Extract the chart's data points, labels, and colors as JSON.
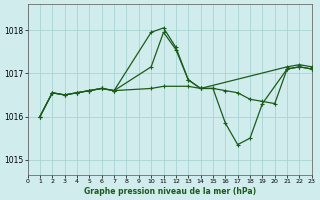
{
  "background_color": "#d0ecec",
  "grid_color": "#a8d4d4",
  "line_color": "#1a5c1a",
  "xlabel": "Graphe pression niveau de la mer (hPa)",
  "xlim": [
    0,
    23
  ],
  "ylim": [
    1014.65,
    1018.6
  ],
  "yticks": [
    1015,
    1016,
    1017,
    1018
  ],
  "xticks": [
    0,
    1,
    2,
    3,
    4,
    5,
    6,
    7,
    8,
    9,
    10,
    11,
    12,
    13,
    14,
    15,
    16,
    17,
    18,
    19,
    20,
    21,
    22,
    23
  ],
  "s1_x": [
    1,
    2,
    3,
    4,
    5,
    6,
    7,
    10,
    11,
    12,
    13,
    14,
    21,
    22,
    23
  ],
  "s1_y": [
    1016.0,
    1016.55,
    1016.5,
    1016.55,
    1016.6,
    1016.65,
    1016.6,
    1017.95,
    1018.05,
    1017.6,
    1016.85,
    1016.65,
    1017.15,
    1017.2,
    1017.15
  ],
  "s2_x": [
    1,
    2,
    3,
    4,
    5,
    6,
    7,
    10,
    11,
    13,
    14,
    15,
    16,
    17,
    18,
    19,
    20,
    21,
    22,
    23
  ],
  "s2_y": [
    1016.0,
    1016.55,
    1016.5,
    1016.55,
    1016.6,
    1016.65,
    1016.6,
    1016.65,
    1016.7,
    1016.7,
    1016.65,
    1016.65,
    1016.6,
    1016.55,
    1016.4,
    1016.35,
    1016.3,
    1017.1,
    1017.15,
    1017.1
  ],
  "s3_x": [
    1,
    2,
    3,
    4,
    5,
    6,
    7,
    10,
    11,
    12,
    13,
    14,
    15,
    16,
    17,
    18,
    19,
    21,
    22,
    23
  ],
  "s3_y": [
    1016.0,
    1016.55,
    1016.5,
    1016.55,
    1016.6,
    1016.65,
    1016.6,
    1017.15,
    1017.95,
    1017.55,
    1016.85,
    1016.65,
    1016.65,
    1015.85,
    1015.35,
    1015.5,
    1016.3,
    1017.1,
    1017.15,
    1017.1
  ]
}
